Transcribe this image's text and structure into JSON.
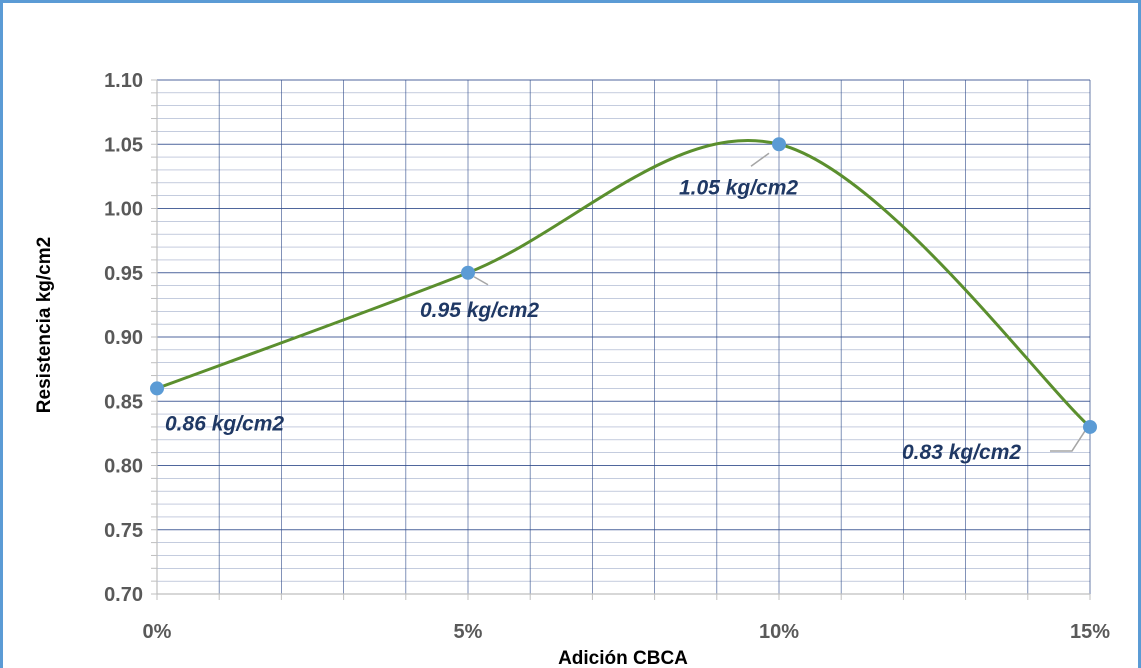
{
  "chart_data": {
    "type": "line",
    "title": "",
    "xlabel": "Adición CBCA",
    "ylabel": "Resistencia kg/cm2",
    "x": [
      0,
      5,
      10,
      15
    ],
    "categories": [
      "0%",
      "5%",
      "10%",
      "15%"
    ],
    "series": [
      {
        "values": [
          0.86,
          0.95,
          1.05,
          0.83
        ]
      }
    ],
    "data_labels": [
      "0.86 kg/cm2",
      "0.95 kg/cm2",
      "1.05 kg/cm2",
      "0.83 kg/cm2"
    ],
    "y_ticks": [
      "0.70",
      "0.75",
      "0.80",
      "0.85",
      "0.90",
      "0.95",
      "1.00",
      "1.05",
      "1.10"
    ],
    "xlim": [
      0,
      15
    ],
    "ylim": [
      0.7,
      1.1
    ],
    "smooth": true,
    "grid": true,
    "legend": "none",
    "colors": {
      "line": "#5b8f2e",
      "marker": "#5b9bd5",
      "grid": "#2e4a8a",
      "frame": "#5b9bd5",
      "label": "#1f3864"
    }
  }
}
